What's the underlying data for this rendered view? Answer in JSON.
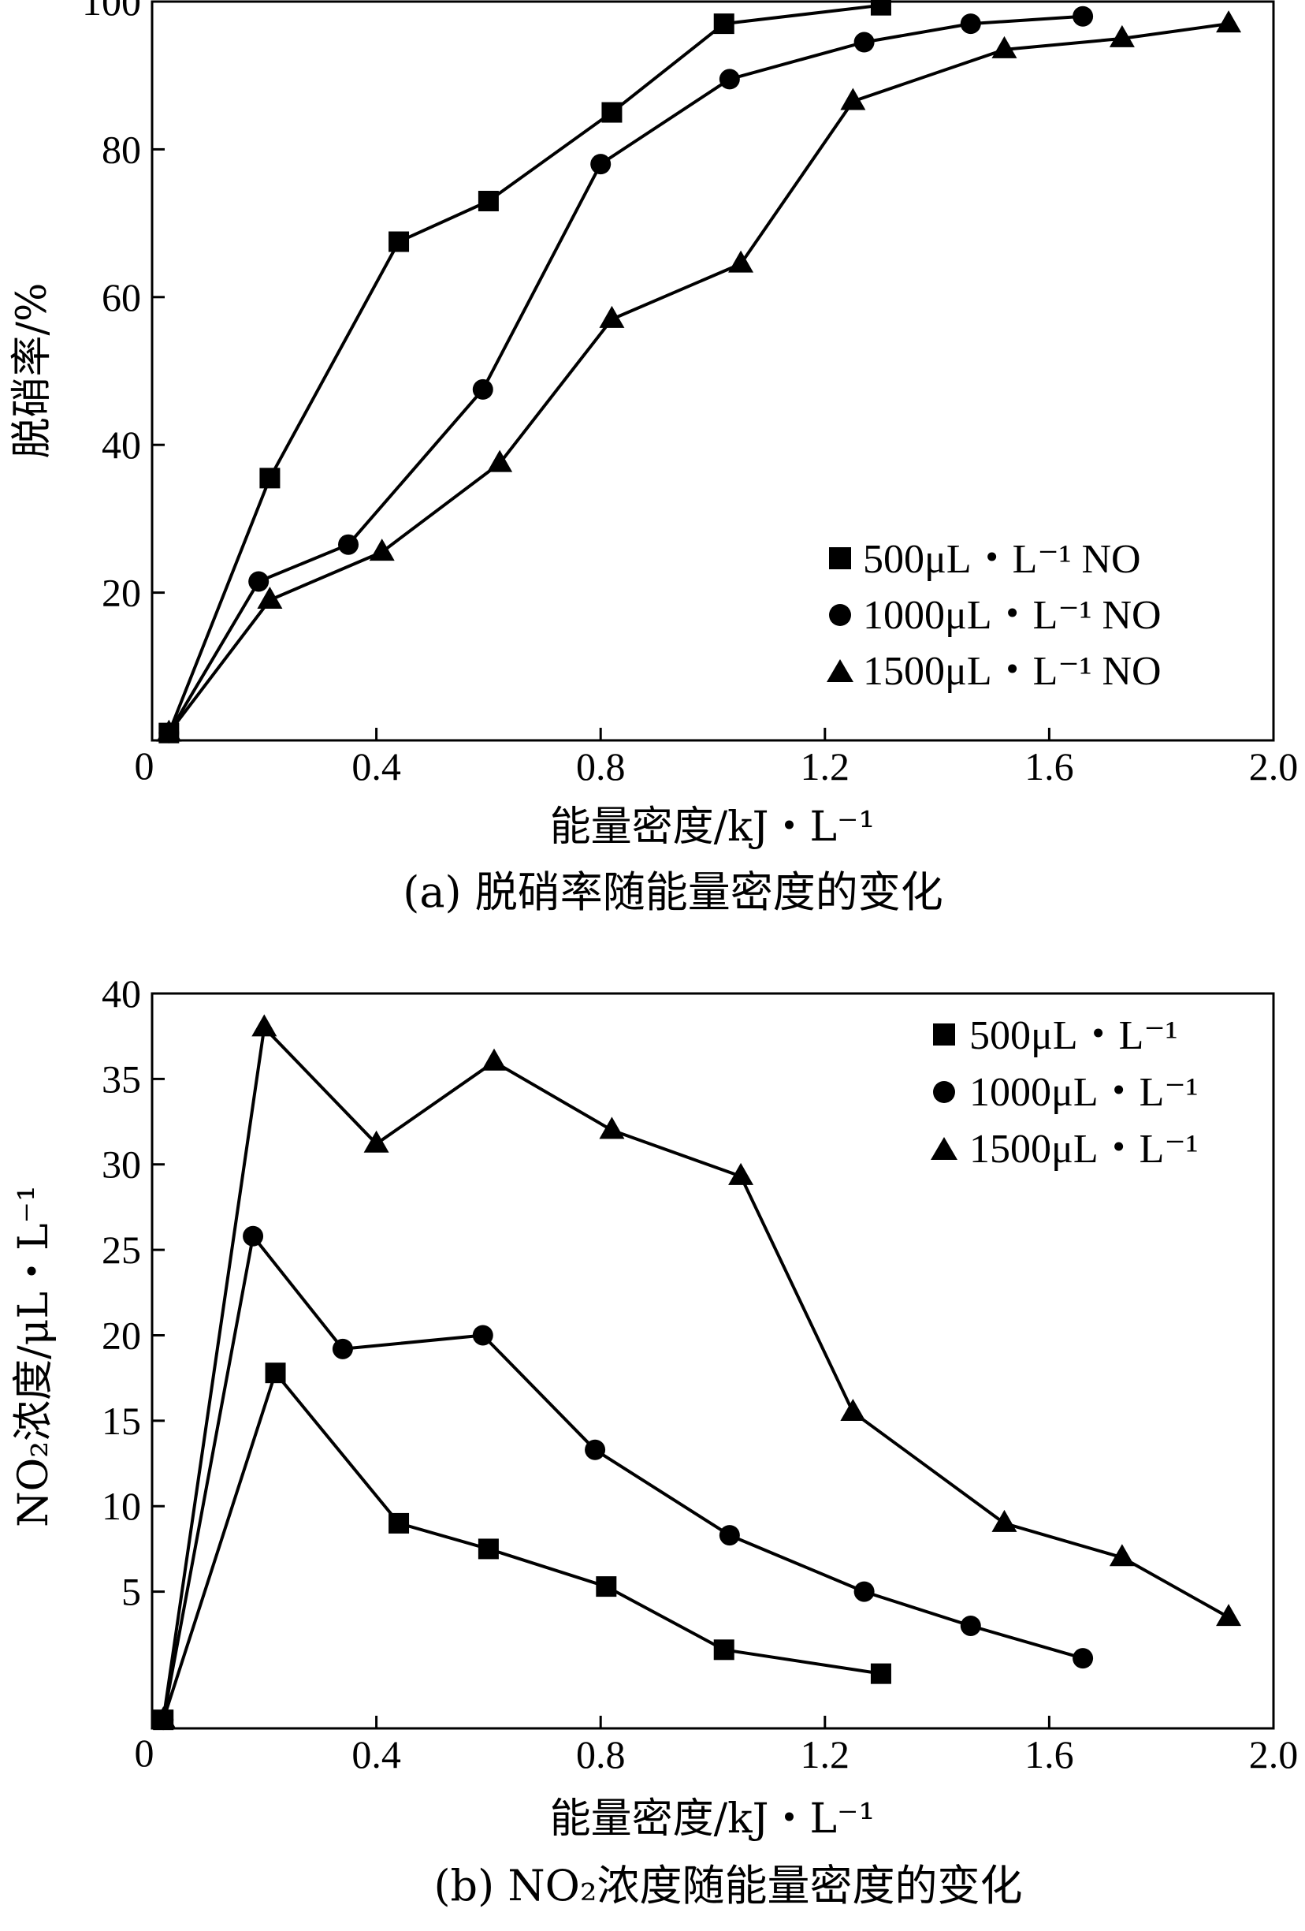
{
  "chart_data": [
    {
      "type": "line",
      "caption": "(a) 脱硝率随能量密度的变化",
      "xlabel": "能量密度/kJ・L⁻¹",
      "ylabel": "脱硝率/%",
      "xlim": [
        0,
        2.0
      ],
      "ylim": [
        0,
        100
      ],
      "xticks": [
        0.4,
        0.8,
        1.2,
        1.6,
        2.0
      ],
      "xtick_labels": [
        "0.4",
        "0.8",
        "1.2",
        "1.6",
        "2.0"
      ],
      "yticks": [
        20,
        40,
        60,
        80,
        100
      ],
      "ytick_labels": [
        "20",
        "40",
        "60",
        "80",
        "100"
      ],
      "origin_label": "0",
      "grid": false,
      "legend_position": "lower-right",
      "series": [
        {
          "name": "500μL・L⁻¹  NO",
          "marker": "square",
          "x": [
            0.03,
            0.21,
            0.44,
            0.6,
            0.82,
            1.02,
            1.3
          ],
          "y": [
            1,
            35.5,
            67.5,
            73,
            85,
            97,
            99.5
          ]
        },
        {
          "name": "1000μL・L⁻¹  NO",
          "marker": "circle",
          "x": [
            0.03,
            0.19,
            0.35,
            0.59,
            0.8,
            1.03,
            1.27,
            1.46,
            1.66
          ],
          "y": [
            1,
            21.5,
            26.5,
            47.5,
            78,
            89.5,
            94.5,
            97,
            98
          ]
        },
        {
          "name": "1500μL・L⁻¹  NO",
          "marker": "triangle",
          "x": [
            0.03,
            0.21,
            0.41,
            0.62,
            0.82,
            1.05,
            1.25,
            1.52,
            1.73,
            1.92
          ],
          "y": [
            1,
            19,
            25.5,
            37.5,
            57,
            64.5,
            86.5,
            93.5,
            95,
            97
          ]
        }
      ]
    },
    {
      "type": "line",
      "caption": "(b) NO₂浓度随能量密度的变化",
      "xlabel": "能量密度/kJ・L⁻¹",
      "ylabel": "NO₂浓度/μL・L⁻¹",
      "xlim": [
        0,
        2.0
      ],
      "ylim": [
        -3,
        40
      ],
      "xticks": [
        0.4,
        0.8,
        1.2,
        1.6,
        2.0
      ],
      "xtick_labels": [
        "0.4",
        "0.8",
        "1.2",
        "1.6",
        "2.0"
      ],
      "yticks": [
        5,
        10,
        15,
        20,
        25,
        30,
        35,
        40
      ],
      "ytick_labels": [
        "5",
        "10",
        "15",
        "20",
        "25",
        "30",
        "35",
        "40"
      ],
      "origin_label": "0",
      "grid": false,
      "legend_position": "top-right",
      "series": [
        {
          "name": "500μL・L⁻¹",
          "marker": "square",
          "x": [
            0.02,
            0.22,
            0.44,
            0.6,
            0.81,
            1.02,
            1.3
          ],
          "y": [
            -2.5,
            17.8,
            9,
            7.5,
            5.3,
            1.6,
            0.2
          ]
        },
        {
          "name": "1000μL・L⁻¹",
          "marker": "circle",
          "x": [
            0.02,
            0.18,
            0.34,
            0.59,
            0.79,
            1.03,
            1.27,
            1.46,
            1.66
          ],
          "y": [
            -2.5,
            25.8,
            19.2,
            20,
            13.3,
            8.3,
            5,
            3,
            1.1
          ]
        },
        {
          "name": "1500μL・L⁻¹",
          "marker": "triangle",
          "x": [
            0.02,
            0.2,
            0.4,
            0.61,
            0.82,
            1.05,
            1.25,
            1.52,
            1.73,
            1.92
          ],
          "y": [
            -2.5,
            38,
            31.2,
            36,
            32,
            29.3,
            15.5,
            9,
            7,
            3.5
          ]
        }
      ]
    }
  ]
}
